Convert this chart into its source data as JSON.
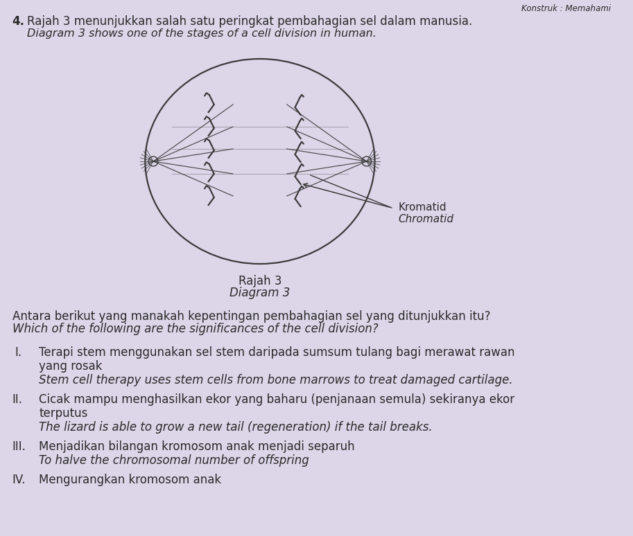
{
  "background_color": "#ddd5e8",
  "header_text": "Konstruk : Memahami",
  "question_number": "4.",
  "title_line1": "Rajah 3 menunjukkan salah satu peringkat pembahagian sel dalam manusia.",
  "title_line2": "Diagram 3 shows one of the stages of a cell division in human.",
  "diagram_label1": "Rajah 3",
  "diagram_label2": "Diagram 3",
  "chromatid_label1": "Kromatid",
  "chromatid_label2": "Chromatid",
  "question_line1": "Antara berikut yang manakah kepentingan pembahagian sel yang ditunjukkan itu?",
  "question_line2": "Which of the following are the significances of the cell division?",
  "item_I_line1": "Terapi stem menggunakan sel stem daripada sumsum tulang bagi merawat rawan",
  "item_I_line2": "yang rosak",
  "item_I_line3": "Stem cell therapy uses stem cells from bone marrows to treat damaged cartilage.",
  "item_II_line1": "Cicak mampu menghasilkan ekor yang baharu (penjanaan semula) sekiranya ekor",
  "item_II_line2": "terputus",
  "item_II_line3": "The lizard is able to grow a new tail (regeneration) if the tail breaks.",
  "item_III_line1": "Menjadikan bilangan kromosom anak menjadi separuh",
  "item_III_line2": "To halve the chromosomal number of offspring",
  "item_IV_line1": "Mengurangkan kromosom anak",
  "text_color": "#2a2a2a",
  "line_color": "#3a3a3a"
}
